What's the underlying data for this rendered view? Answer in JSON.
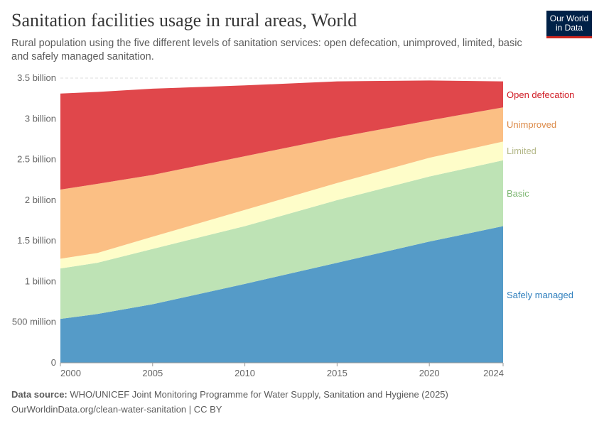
{
  "header": {
    "title": "Sanitation facilities usage in rural areas, World",
    "subtitle": "Rural population using the five different levels of sanitation services: open defecation, unimproved, limited, basic and safely managed sanitation.",
    "logo": "Our World in Data"
  },
  "footer": {
    "source_label": "Data source:",
    "source": "WHO/UNICEF Joint Monitoring Programme for Water Supply, Sanitation and Hygiene (2025)",
    "link": "OurWorldinData.org/clean-water-sanitation | CC BY"
  },
  "chart_data": {
    "type": "area",
    "stacked": true,
    "x": [
      2000,
      2002,
      2005,
      2010,
      2015,
      2020,
      2024
    ],
    "xlim": [
      2000,
      2024
    ],
    "ylim": [
      0,
      3500000000
    ],
    "x_ticks": [
      "2000",
      "2005",
      "2010",
      "2015",
      "2020",
      "2024"
    ],
    "y_ticks": [
      "0",
      "500 million",
      "1 billion",
      "1.5 billion",
      "2 billion",
      "2.5 billion",
      "3 billion",
      "3.5 billion"
    ],
    "grid": "horizontal dashed",
    "legend": "right, inline labels",
    "series": [
      {
        "name": "Safely managed",
        "color": "#559bc8",
        "values": [
          0.54,
          0.6,
          0.72,
          0.97,
          1.23,
          1.49,
          1.68
        ]
      },
      {
        "name": "Basic",
        "color": "#bee3b5",
        "values": [
          0.62,
          0.63,
          0.68,
          0.71,
          0.77,
          0.8,
          0.81
        ]
      },
      {
        "name": "Limited",
        "color": "#fefdc9",
        "values": [
          0.12,
          0.12,
          0.15,
          0.2,
          0.21,
          0.23,
          0.23
        ]
      },
      {
        "name": "Unimproved",
        "color": "#fbbf84",
        "values": [
          0.85,
          0.85,
          0.76,
          0.66,
          0.56,
          0.46,
          0.42
        ]
      },
      {
        "name": "Open defecation",
        "color": "#e0474b",
        "values": [
          1.18,
          1.13,
          1.06,
          0.87,
          0.69,
          0.49,
          0.32
        ]
      }
    ],
    "value_unit": "billion",
    "label_colors": {
      "Safely managed": "#2f7fbd",
      "Basic": "#7fb874",
      "Limited": "#b5b98a",
      "Unimproved": "#dc8a48",
      "Open defecation": "#d01c25"
    }
  }
}
